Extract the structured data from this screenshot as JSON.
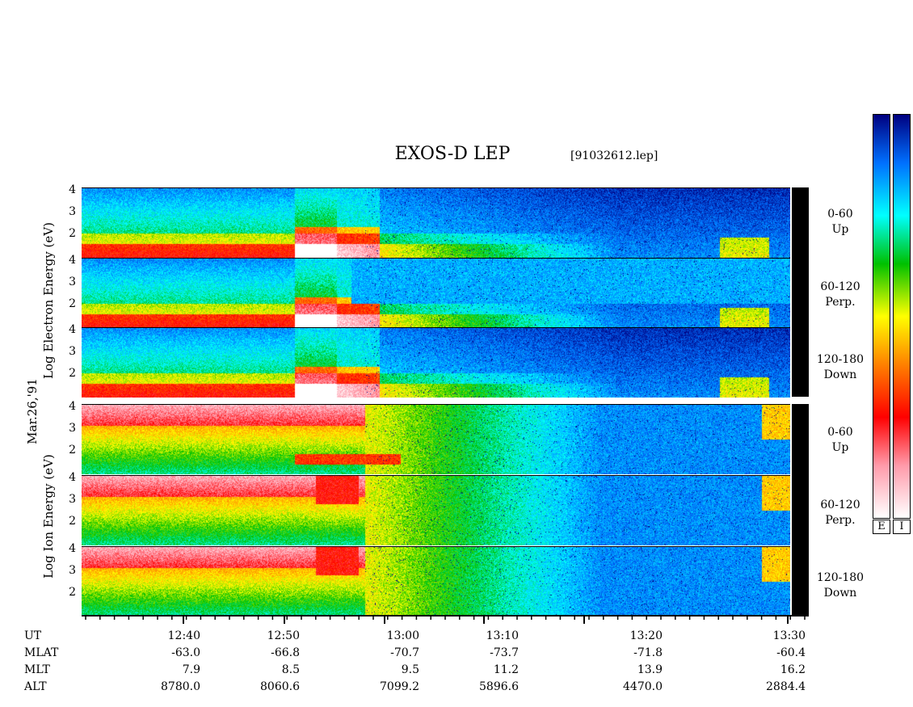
{
  "title": "EXOS-D LEP",
  "file": "[91032612.lep]",
  "date_label": "Mar.26,'91",
  "electron_ylabel": "Log  Electron  Energy (eV)",
  "ion_ylabel": "Log  Ion  Energy (eV)",
  "panels": [
    {
      "species": "electron",
      "pitch": "0-60",
      "sub": "Up"
    },
    {
      "species": "electron",
      "pitch": "60-120",
      "sub": "Perp."
    },
    {
      "species": "electron",
      "pitch": "120-180",
      "sub": "Down"
    },
    {
      "species": "ion",
      "pitch": "0-60",
      "sub": "Up"
    },
    {
      "species": "ion",
      "pitch": "60-120",
      "sub": "Perp."
    },
    {
      "species": "ion",
      "pitch": "120-180",
      "sub": "Down"
    }
  ],
  "yticks": [
    "4",
    "3",
    "2"
  ],
  "colorbar_labels": [
    "E",
    "I"
  ],
  "colors": {
    "colormap": [
      "#ffffff",
      "#ff9aaa",
      "#ff0000",
      "#ff8000",
      "#ffff00",
      "#00c000",
      "#00ffff",
      "#0070ff",
      "#000080"
    ]
  },
  "chart_data": {
    "type": "heatmap",
    "title": "EXOS-D LEP",
    "ylabel": "Log Electron Energy (eV) / Log Ion Energy (eV)",
    "ylim": [
      1,
      4
    ],
    "x_tick_labels": [
      "12:40",
      "12:50",
      "13:00",
      "13:10",
      "13:20",
      "13:30"
    ],
    "axis_rows": [
      {
        "label": "UT",
        "values": [
          "12:40",
          "12:50",
          "13:00",
          "13:10",
          "13:20",
          "13:30"
        ]
      },
      {
        "label": "MLAT",
        "values": [
          "-63.0",
          "-66.8",
          "-70.7",
          "-73.7",
          "-71.8",
          "-60.4"
        ]
      },
      {
        "label": "MLT",
        "values": [
          "7.9",
          "8.5",
          "9.5",
          "11.2",
          "13.9",
          "16.2"
        ]
      },
      {
        "label": "ALT",
        "values": [
          "8780.0",
          "8060.6",
          "7099.2",
          "5896.6",
          "4470.0",
          "2884.4"
        ]
      }
    ]
  }
}
